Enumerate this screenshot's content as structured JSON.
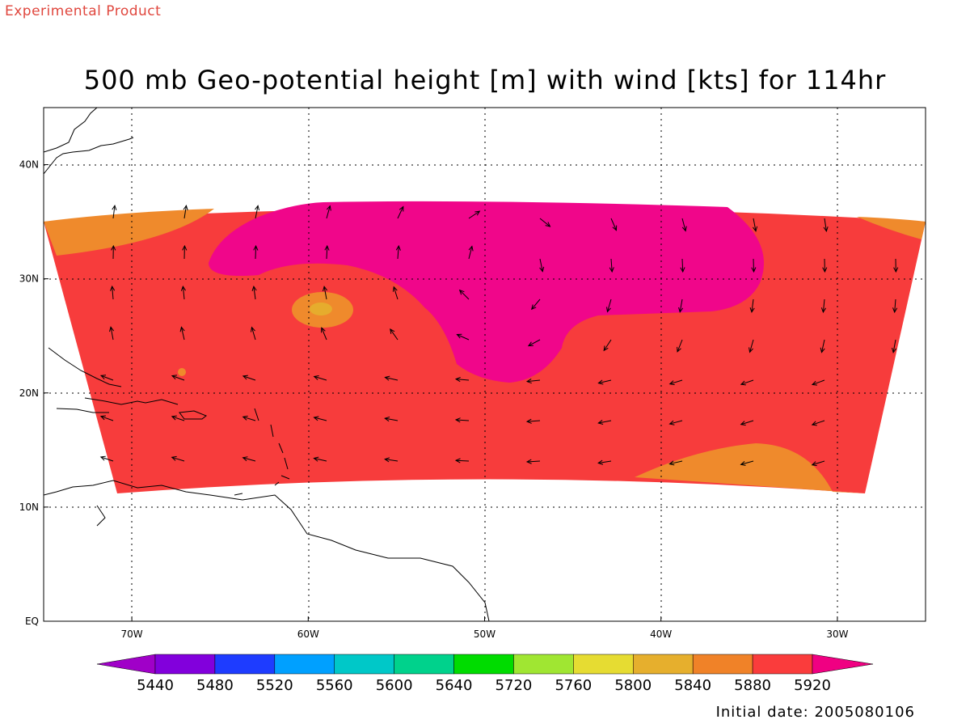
{
  "header": {
    "experimental_label": "Experimental Product",
    "title": "500 mb Geo-potential height [m] with wind [kts] for 114hr"
  },
  "footer": {
    "initial_date": "Initial date: 2005080106"
  },
  "map": {
    "projection_bounds": {
      "lon_min": -75,
      "lon_max": -25,
      "lat_min": 0,
      "lat_max": 45
    },
    "lon_ticks": [
      {
        "lon": -70,
        "label": "70W"
      },
      {
        "lon": -60,
        "label": "60W"
      },
      {
        "lon": -50,
        "label": "50W"
      },
      {
        "lon": -40,
        "label": "40W"
      },
      {
        "lon": -30,
        "label": "30W"
      }
    ],
    "lat_ticks": [
      {
        "lat": 0,
        "label": "EQ"
      },
      {
        "lat": 10,
        "label": "10N"
      },
      {
        "lat": 20,
        "label": "20N"
      },
      {
        "lat": 30,
        "label": "30N"
      },
      {
        "lat": 40,
        "label": "40N"
      }
    ],
    "contour_fill_colors": {
      "5880": "#ef8a2c",
      "5920": "#f73c3c",
      "above": "#f0068a",
      "5840": "#e6ac2d"
    }
  },
  "colorbar": {
    "levels": [
      "5440",
      "5480",
      "5520",
      "5560",
      "5600",
      "5640",
      "5720",
      "5760",
      "5800",
      "5840",
      "5880",
      "5920"
    ],
    "colors": [
      "#a000c8",
      "#8200dc",
      "#1e3cff",
      "#00a0ff",
      "#00c8c8",
      "#00d28c",
      "#00dc00",
      "#a0e632",
      "#e6dc32",
      "#e6af2d",
      "#f08228",
      "#fa3c3c",
      "#f00082"
    ]
  }
}
